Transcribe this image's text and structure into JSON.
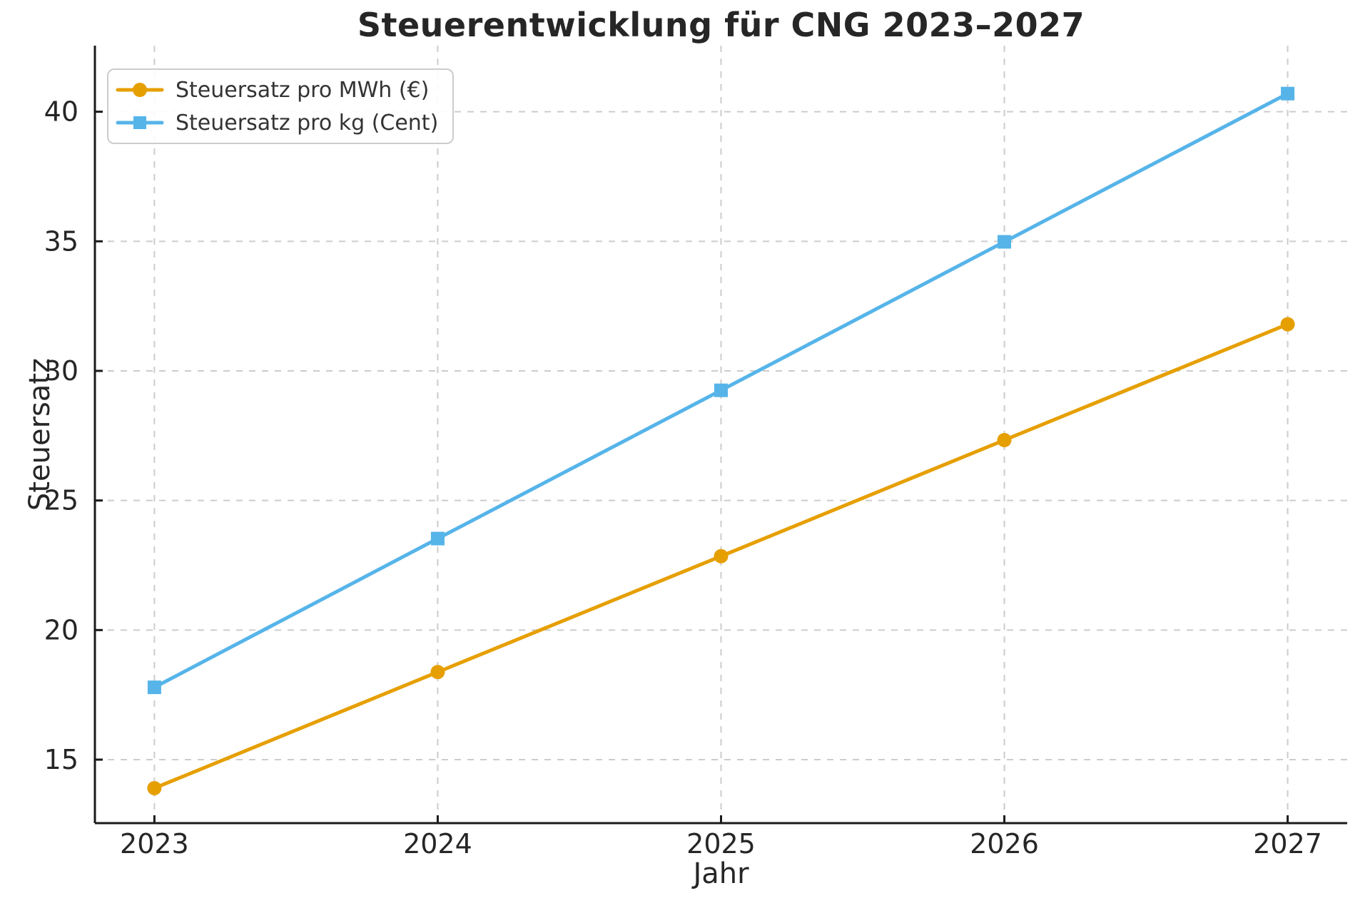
{
  "figure": {
    "background": "#ffffff",
    "text_color": "#262626",
    "grid_color": "#cccccc",
    "spine_color": "#1a1a1a",
    "legend_border_color": "#cccccc"
  },
  "chart_data": {
    "type": "line",
    "title": "Steuerentwicklung für CNG 2023–2027",
    "xlabel": "Jahr",
    "ylabel": "Steuersatz",
    "x": [
      2023,
      2024,
      2025,
      2026,
      2027
    ],
    "x_tick_labels": [
      "2023",
      "2024",
      "2025",
      "2026",
      "2027"
    ],
    "y_ticks": [
      15,
      20,
      25,
      30,
      35,
      40
    ],
    "y_tick_labels": [
      "15",
      "20",
      "25",
      "30",
      "35",
      "40"
    ],
    "xlim": [
      2022.79,
      2027.21
    ],
    "ylim": [
      12.55,
      42.55
    ],
    "grid": true,
    "grid_style": "dashed",
    "legend_position": "upper-left",
    "series": [
      {
        "name": "Steuersatz pro MWh (€)",
        "color": "#E69F00",
        "marker": "circle",
        "values": [
          13.9,
          18.38,
          22.85,
          27.33,
          31.8
        ]
      },
      {
        "name": "Steuersatz pro kg (Cent)",
        "color": "#56B4E9",
        "marker": "square",
        "values": [
          17.79,
          23.53,
          29.25,
          34.98,
          40.7
        ]
      }
    ]
  }
}
